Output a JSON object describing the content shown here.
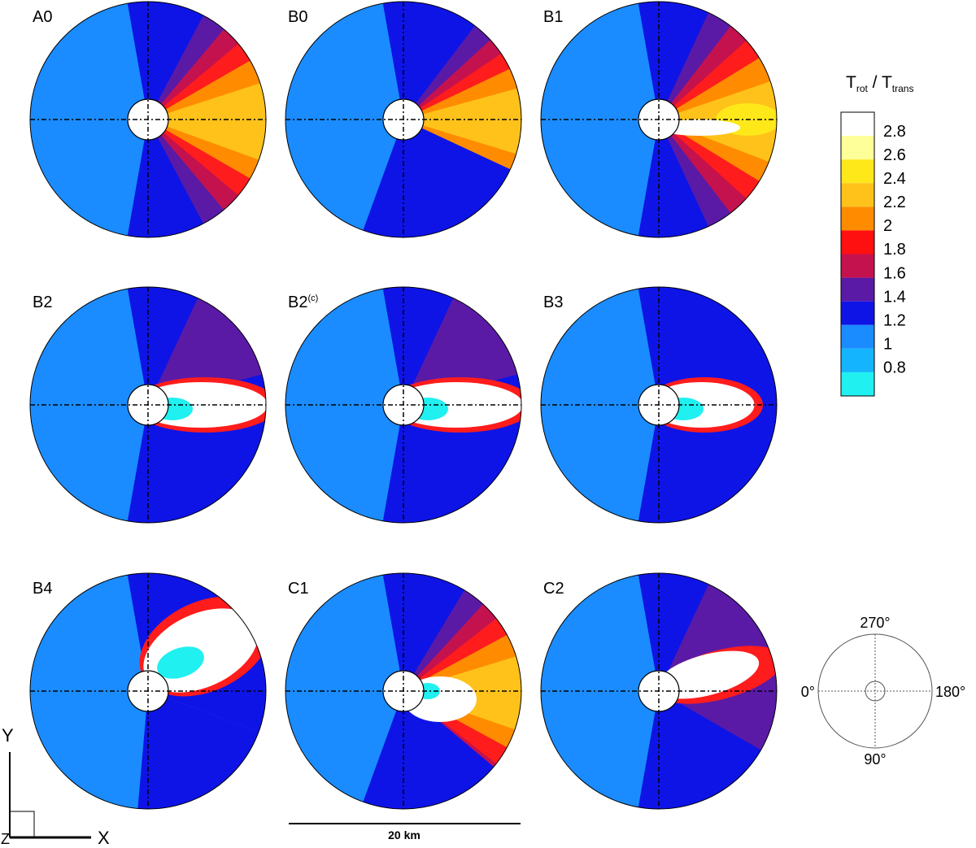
{
  "panels": [
    {
      "label": "A0"
    },
    {
      "label": "B0"
    },
    {
      "label": "B1"
    },
    {
      "label": "B2"
    },
    {
      "label": "B2",
      "sup": "(c)"
    },
    {
      "label": "B3"
    },
    {
      "label": "B4"
    },
    {
      "label": "C1"
    },
    {
      "label": "C2"
    }
  ],
  "colorbar": {
    "title": "T",
    "title_sub": "rot",
    "separator": " / ",
    "title2": "T",
    "title2_sub": "trans",
    "labels": [
      "2.8",
      "2.6",
      "2.4",
      "2.2",
      "2",
      "1.8",
      "1.6",
      "1.4",
      "1.2",
      "1",
      "0.8"
    ]
  },
  "angles": {
    "top": "270°",
    "bottom": "90°",
    "left": "0°",
    "right": "180°"
  },
  "axes": {
    "y": "Y",
    "x": "X",
    "z": "Z"
  },
  "scale_bar": "20 km"
}
